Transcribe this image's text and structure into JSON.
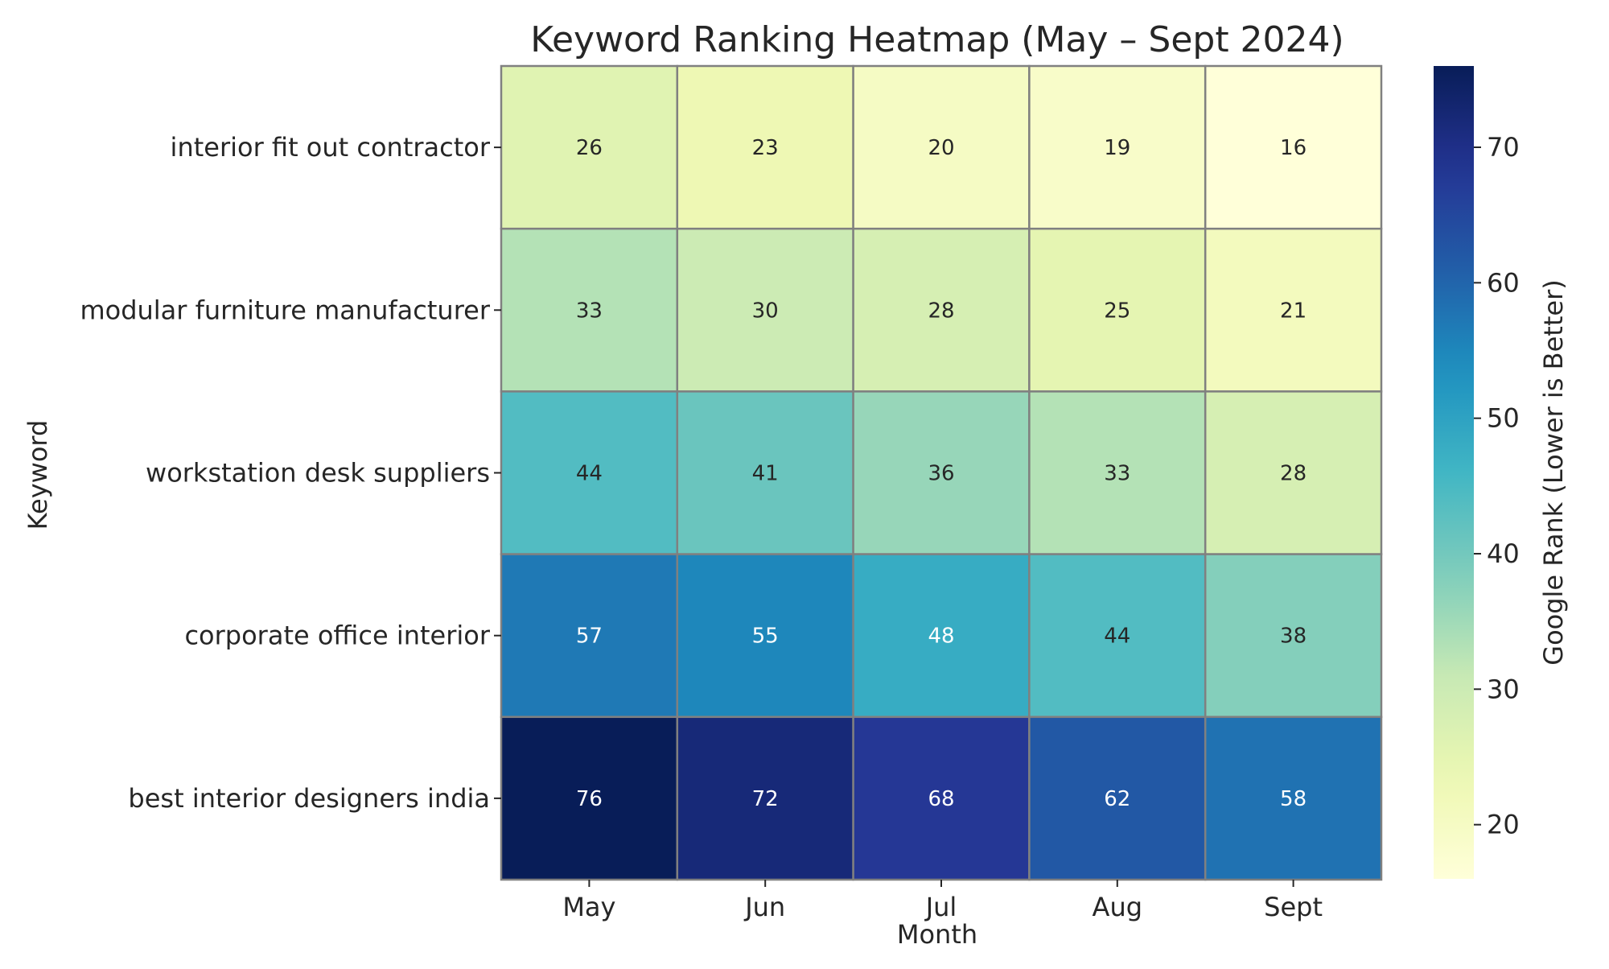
{
  "chart_data": {
    "type": "heatmap",
    "title": "Keyword Ranking Heatmap (May – Sept 2024)",
    "xlabel": "Month",
    "ylabel": "Keyword",
    "x_categories": [
      "May",
      "Jun",
      "Jul",
      "Aug",
      "Sept"
    ],
    "y_categories": [
      "interior fit out contractor",
      "modular furniture manufacturer",
      "workstation desk suppliers",
      "corporate office interior",
      "best interior designers india"
    ],
    "values": [
      [
        26,
        23,
        20,
        19,
        16
      ],
      [
        33,
        30,
        28,
        25,
        21
      ],
      [
        44,
        41,
        36,
        33,
        28
      ],
      [
        57,
        55,
        48,
        44,
        38
      ],
      [
        76,
        72,
        68,
        62,
        58
      ]
    ],
    "colorbar": {
      "label": "Google Rank (Lower is Better)",
      "min": 16,
      "max": 76,
      "ticks": [
        20,
        30,
        40,
        50,
        60,
        70
      ],
      "colormap": "YlGnBu"
    },
    "annotated": true,
    "cell_border_color": "#808080"
  }
}
